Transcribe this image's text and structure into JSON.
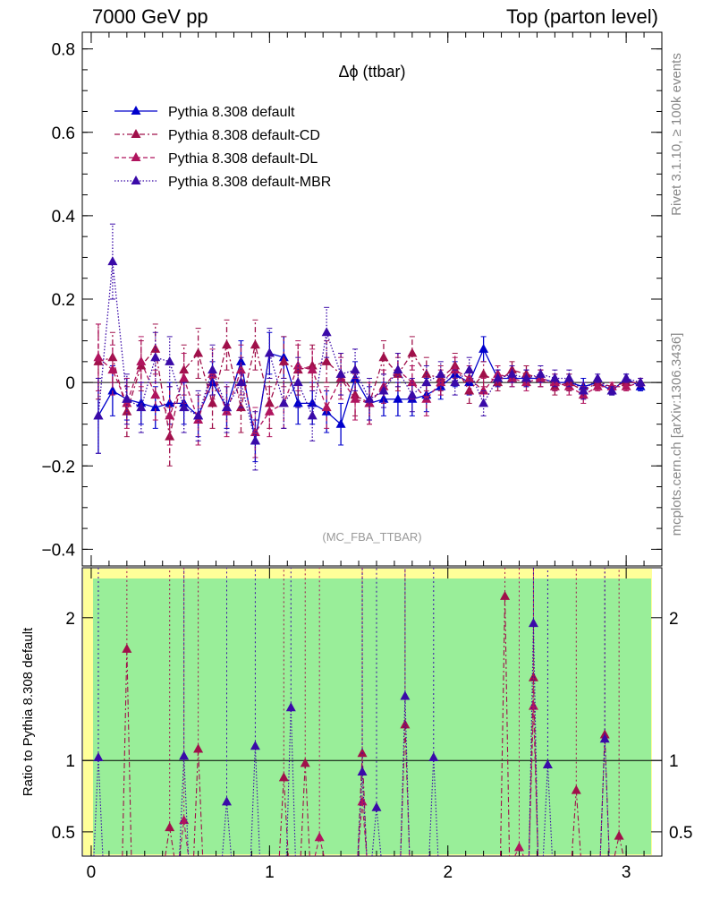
{
  "header": {
    "left": "7000 GeV pp",
    "right": "Top (parton level)"
  },
  "side_text": {
    "right_top": "Rivet 3.1.10, ≥ 100k events",
    "right_bottom": "mcplots.cern.ch [arXiv:1306.3436]"
  },
  "chart_data": [
    {
      "type": "line",
      "title": "Δϕ (ttbar)",
      "watermark": "(MC_FBA_TTBAR)",
      "ylim": [
        -0.44,
        0.84
      ],
      "xlim": [
        -0.05,
        3.2
      ],
      "yticks": [
        {
          "v": 0.8,
          "label": "0.8"
        },
        {
          "v": 0.6,
          "label": "0.6"
        },
        {
          "v": 0.4,
          "label": "0.4"
        },
        {
          "v": 0.2,
          "label": "0.2"
        },
        {
          "v": 0,
          "label": "0"
        },
        {
          "v": -0.2,
          "label": "−0.2"
        },
        {
          "v": -0.4,
          "label": "−0.4"
        }
      ],
      "series": [
        {
          "name": "Pythia 8.308 default",
          "color": "#0000cc",
          "style": "solid",
          "x": [
            0.04,
            0.12,
            0.2,
            0.28,
            0.36,
            0.44,
            0.52,
            0.6,
            0.68,
            0.76,
            0.84,
            0.92,
            1.0,
            1.08,
            1.16,
            1.24,
            1.32,
            1.4,
            1.48,
            1.56,
            1.64,
            1.72,
            1.8,
            1.88,
            1.96,
            2.04,
            2.12,
            2.2,
            2.28,
            2.36,
            2.44,
            2.52,
            2.6,
            2.68,
            2.76,
            2.84,
            2.92,
            3.0,
            3.08
          ],
          "y": [
            -0.08,
            -0.02,
            -0.04,
            -0.05,
            -0.06,
            -0.05,
            -0.05,
            -0.08,
            0.0,
            -0.06,
            0.05,
            -0.14,
            0.07,
            0.06,
            -0.05,
            -0.05,
            -0.07,
            -0.1,
            0.01,
            -0.05,
            -0.04,
            -0.04,
            -0.04,
            -0.03,
            -0.01,
            0.02,
            0.0,
            0.08,
            0.01,
            0.01,
            0.01,
            0.01,
            0.0,
            0.0,
            -0.01,
            0.0,
            -0.02,
            0.01,
            -0.01
          ],
          "err": [
            0.09,
            0.06,
            0.05,
            0.05,
            0.05,
            0.05,
            0.05,
            0.05,
            0.05,
            0.05,
            0.05,
            0.05,
            0.05,
            0.05,
            0.05,
            0.05,
            0.05,
            0.05,
            0.04,
            0.04,
            0.04,
            0.04,
            0.04,
            0.04,
            0.03,
            0.03,
            0.03,
            0.03,
            0.02,
            0.02,
            0.02,
            0.02,
            0.02,
            0.02,
            0.02,
            0.01,
            0.01,
            0.01,
            0.01
          ]
        },
        {
          "name": "Pythia 8.308 default-CD",
          "color": "#a0104a",
          "style": "dashdot",
          "x": [
            0.04,
            0.12,
            0.2,
            0.28,
            0.36,
            0.44,
            0.52,
            0.6,
            0.68,
            0.76,
            0.84,
            0.92,
            1.0,
            1.08,
            1.16,
            1.24,
            1.32,
            1.4,
            1.48,
            1.56,
            1.64,
            1.72,
            1.8,
            1.88,
            1.96,
            2.04,
            2.12,
            2.2,
            2.28,
            2.36,
            2.44,
            2.52,
            2.6,
            2.68,
            2.76,
            2.84,
            2.92,
            3.0,
            3.08
          ],
          "y": [
            0.05,
            0.06,
            -0.07,
            0.04,
            0.08,
            -0.13,
            0.03,
            0.07,
            -0.05,
            0.09,
            -0.06,
            0.09,
            -0.05,
            0.05,
            0.03,
            0.04,
            0.05,
            0.02,
            -0.03,
            -0.05,
            0.06,
            0.02,
            0.07,
            0.02,
            0.01,
            0.04,
            -0.02,
            0.02,
            0.0,
            0.03,
            0.02,
            0.01,
            -0.01,
            0.0,
            -0.02,
            0.0,
            -0.01,
            0.0,
            0.0
          ],
          "err": [
            0.09,
            0.06,
            0.06,
            0.06,
            0.06,
            0.07,
            0.06,
            0.06,
            0.06,
            0.06,
            0.06,
            0.06,
            0.06,
            0.06,
            0.06,
            0.05,
            0.05,
            0.05,
            0.05,
            0.05,
            0.04,
            0.04,
            0.04,
            0.04,
            0.03,
            0.03,
            0.03,
            0.03,
            0.02,
            0.02,
            0.02,
            0.02,
            0.02,
            0.02,
            0.02,
            0.01,
            0.01,
            0.01,
            0.01
          ]
        },
        {
          "name": "Pythia 8.308 default-DL",
          "color": "#b0145e",
          "style": "dashed",
          "x": [
            0.04,
            0.12,
            0.2,
            0.28,
            0.36,
            0.44,
            0.52,
            0.6,
            0.68,
            0.76,
            0.84,
            0.92,
            1.0,
            1.08,
            1.16,
            1.24,
            1.32,
            1.4,
            1.48,
            1.56,
            1.64,
            1.72,
            1.8,
            1.88,
            1.96,
            2.04,
            2.12,
            2.2,
            2.28,
            2.36,
            2.44,
            2.52,
            2.6,
            2.68,
            2.76,
            2.84,
            2.92,
            3.0,
            3.08
          ],
          "y": [
            0.06,
            0.03,
            -0.05,
            0.05,
            -0.03,
            -0.08,
            0.01,
            -0.09,
            0.02,
            -0.07,
            0.03,
            -0.12,
            -0.07,
            -0.05,
            0.04,
            0.03,
            -0.06,
            0.01,
            -0.04,
            -0.05,
            -0.01,
            0.03,
            0.0,
            -0.04,
            0.0,
            0.03,
            0.01,
            -0.02,
            0.02,
            0.01,
            0.0,
            0.01,
            0.0,
            -0.01,
            -0.03,
            -0.01,
            -0.01,
            -0.01,
            0.0
          ],
          "err": [
            0.08,
            0.06,
            0.06,
            0.06,
            0.06,
            0.07,
            0.06,
            0.06,
            0.06,
            0.06,
            0.06,
            0.06,
            0.06,
            0.06,
            0.06,
            0.05,
            0.05,
            0.05,
            0.05,
            0.05,
            0.04,
            0.04,
            0.04,
            0.04,
            0.03,
            0.03,
            0.03,
            0.03,
            0.02,
            0.02,
            0.02,
            0.02,
            0.02,
            0.02,
            0.02,
            0.01,
            0.01,
            0.01,
            0.01
          ]
        },
        {
          "name": "Pythia 8.308 default-MBR",
          "color": "#3a0aa8",
          "style": "dotted",
          "x": [
            0.04,
            0.12,
            0.2,
            0.28,
            0.36,
            0.44,
            0.52,
            0.6,
            0.68,
            0.76,
            0.84,
            0.92,
            1.0,
            1.08,
            1.16,
            1.24,
            1.32,
            1.4,
            1.48,
            1.56,
            1.64,
            1.72,
            1.8,
            1.88,
            1.96,
            2.04,
            2.12,
            2.2,
            2.28,
            2.36,
            2.44,
            2.52,
            2.6,
            2.68,
            2.76,
            2.84,
            2.92,
            3.0,
            3.08
          ],
          "y": [
            -0.08,
            0.29,
            -0.04,
            -0.06,
            0.06,
            0.05,
            -0.06,
            -0.08,
            0.03,
            -0.06,
            0.0,
            -0.14,
            0.07,
            -0.05,
            0.0,
            -0.08,
            0.12,
            0.02,
            0.03,
            -0.04,
            -0.02,
            0.03,
            -0.03,
            0.0,
            0.02,
            0.0,
            0.03,
            -0.05,
            0.01,
            0.02,
            0.01,
            0.02,
            0.01,
            0.01,
            -0.02,
            0.01,
            -0.02,
            0.01,
            0.0
          ],
          "err": [
            0.09,
            0.09,
            0.06,
            0.06,
            0.06,
            0.06,
            0.06,
            0.06,
            0.06,
            0.06,
            0.06,
            0.07,
            0.06,
            0.06,
            0.06,
            0.06,
            0.06,
            0.05,
            0.05,
            0.05,
            0.04,
            0.04,
            0.04,
            0.04,
            0.03,
            0.03,
            0.03,
            0.03,
            0.02,
            0.02,
            0.02,
            0.02,
            0.02,
            0.02,
            0.02,
            0.01,
            0.01,
            0.01,
            0.01
          ]
        }
      ]
    },
    {
      "type": "line",
      "ylabel": "Ratio to Pythia 8.308 default",
      "ylim": [
        0.33,
        2.35
      ],
      "yticks": [
        {
          "v": 2,
          "label": "2"
        },
        {
          "v": 1,
          "label": "1"
        },
        {
          "v": 0.5,
          "label": "0.5"
        }
      ],
      "xticks": [
        {
          "v": 0,
          "label": "0"
        },
        {
          "v": 1,
          "label": "1"
        },
        {
          "v": 2,
          "label": "2"
        },
        {
          "v": 3,
          "label": "3"
        }
      ],
      "band_colors": {
        "inner": "#99ee99",
        "outer": "#ffff99"
      },
      "series": [
        {
          "name": "Pythia 8.308 default-CD",
          "marker_x": [
            0.2,
            0.44,
            0.6,
            1.08,
            1.2,
            1.52,
            1.76,
            2.32,
            2.48,
            2.72,
            2.88,
            2.96
          ],
          "marker_y": [
            1.78,
            0.53,
            1.08,
            0.88,
            0.98,
            1.05,
            1.25,
            2.15,
            1.58,
            0.79,
            1.18,
            0.47
          ]
        },
        {
          "name": "Pythia 8.308 default-DL",
          "marker_x": [
            0.52,
            1.28,
            1.52,
            2.4,
            2.48
          ],
          "marker_y": [
            0.58,
            0.46,
            0.71,
            0.39,
            1.38
          ]
        },
        {
          "name": "Pythia 8.308 default-MBR",
          "marker_x": [
            0.04,
            0.52,
            0.76,
            0.92,
            1.12,
            1.52,
            1.6,
            1.76,
            1.92,
            2.48,
            2.56,
            2.88
          ],
          "marker_y": [
            1.02,
            1.03,
            0.71,
            1.1,
            1.37,
            0.92,
            0.67,
            1.45,
            1.02,
            1.96,
            0.97,
            1.15
          ]
        }
      ]
    }
  ]
}
